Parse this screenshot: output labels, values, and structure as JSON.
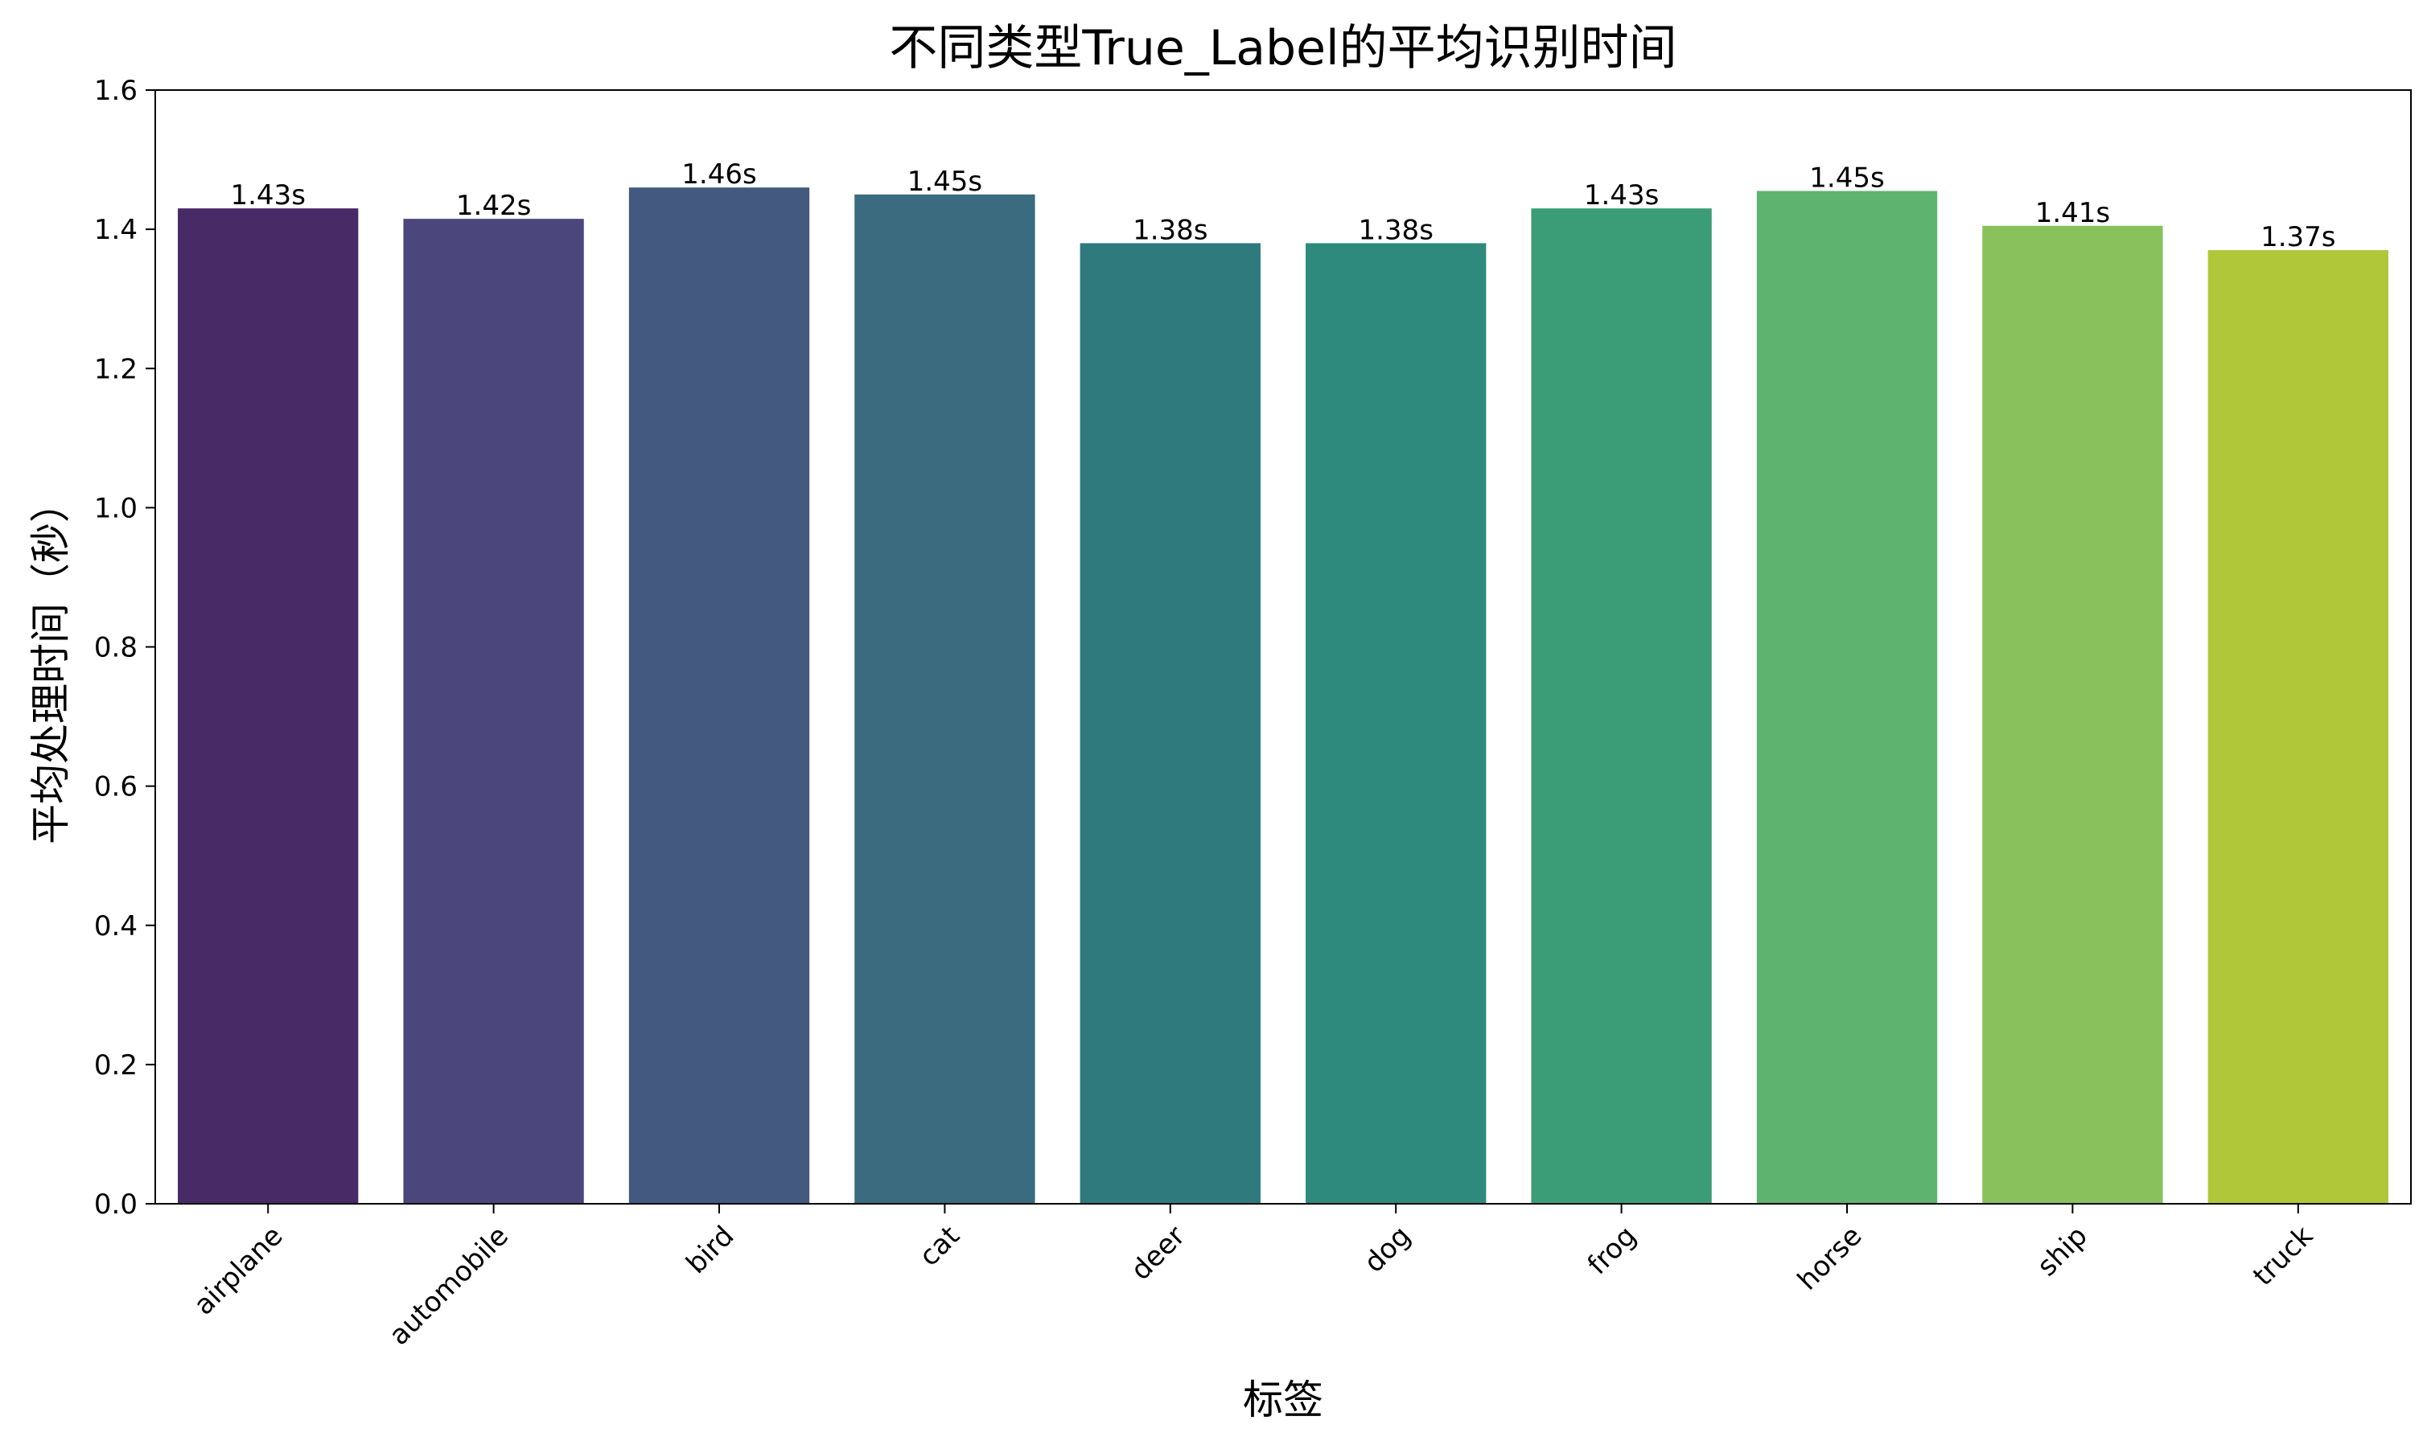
{
  "chart_data": {
    "type": "bar",
    "title": "不同类型True_Label的平均识别时间",
    "xlabel": "标签",
    "ylabel": "平均处理时间（秒）",
    "ylim": [
      0,
      1.6
    ],
    "yticks": [
      "0.0",
      "0.2",
      "0.4",
      "0.6",
      "0.8",
      "1.0",
      "1.2",
      "1.4",
      "1.6"
    ],
    "categories": [
      "airplane",
      "automobile",
      "bird",
      "cat",
      "deer",
      "dog",
      "frog",
      "horse",
      "ship",
      "truck"
    ],
    "values": [
      1.43,
      1.415,
      1.46,
      1.45,
      1.38,
      1.38,
      1.43,
      1.455,
      1.405,
      1.37
    ],
    "value_labels": [
      "1.43s",
      "1.42s",
      "1.46s",
      "1.45s",
      "1.38s",
      "1.38s",
      "1.43s",
      "1.45s",
      "1.41s",
      "1.37s"
    ],
    "colors": [
      "#482a67",
      "#4b467b",
      "#43597f",
      "#3a6b7f",
      "#2f7a7d",
      "#2e8a7d",
      "#3b9d77",
      "#5eb36e",
      "#89c25d",
      "#b0c73a"
    ],
    "grid": false,
    "legend": "none"
  }
}
